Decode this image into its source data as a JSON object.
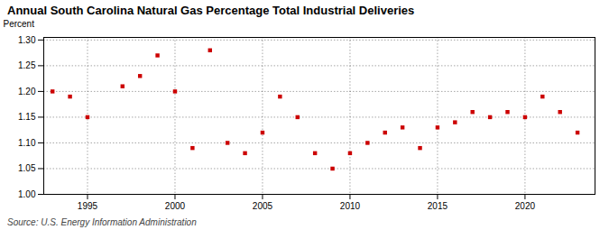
{
  "chart_data": {
    "type": "scatter",
    "title": "Annual South Carolina Natural Gas Percentage Total Industrial Deliveries",
    "ylabel": "Percent",
    "annotations": [
      "Source: U.S. Energy Information Administration"
    ],
    "x": [
      1993,
      1994,
      1995,
      1997,
      1998,
      1999,
      2000,
      2001,
      2002,
      2003,
      2004,
      2005,
      2006,
      2007,
      2008,
      2009,
      2010,
      2011,
      2012,
      2013,
      2014,
      2015,
      2016,
      2017,
      2018,
      2019,
      2020,
      2021,
      2022,
      2023
    ],
    "values": [
      1.2,
      1.19,
      1.15,
      1.21,
      1.23,
      1.27,
      1.2,
      1.09,
      1.28,
      1.1,
      1.08,
      1.12,
      1.19,
      1.15,
      1.08,
      1.05,
      1.08,
      1.1,
      1.12,
      1.13,
      1.09,
      1.13,
      1.14,
      1.16,
      1.15,
      1.16,
      1.15,
      1.19,
      1.16,
      1.12
    ],
    "color": "#cc0000",
    "marker": "square",
    "xlim": [
      1992.5,
      2024
    ],
    "xticks": [
      1995,
      2000,
      2005,
      2010,
      2015,
      2020
    ],
    "ylim": [
      1.0,
      1.305
    ],
    "yticks": [
      {
        "value": 1.0,
        "label": "1.00"
      },
      {
        "value": 1.05,
        "label": "1.05"
      },
      {
        "value": 1.1,
        "label": "1.10"
      },
      {
        "value": 1.15,
        "label": "1.15"
      },
      {
        "value": 1.2,
        "label": "1.20"
      },
      {
        "value": 1.25,
        "label": "1.25"
      },
      {
        "value": 1.3,
        "label": "1.30"
      }
    ],
    "grid": true
  }
}
